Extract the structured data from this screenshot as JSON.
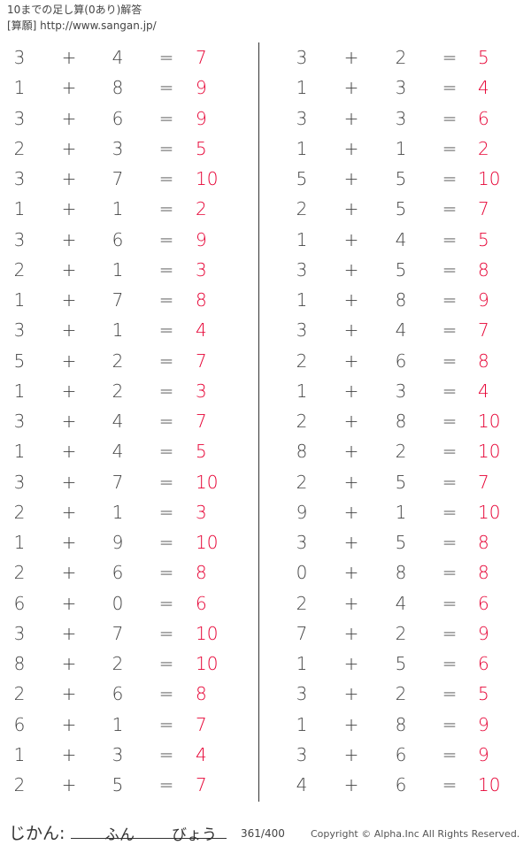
{
  "header": {
    "title": "10までの足し算(0あり)解答",
    "source": "[算願] http://www.sangan.jp/"
  },
  "symbols": {
    "plus": "+",
    "equals": "="
  },
  "left": [
    [
      3,
      4,
      7
    ],
    [
      1,
      8,
      9
    ],
    [
      3,
      6,
      9
    ],
    [
      2,
      3,
      5
    ],
    [
      3,
      7,
      10
    ],
    [
      1,
      1,
      2
    ],
    [
      3,
      6,
      9
    ],
    [
      2,
      1,
      3
    ],
    [
      1,
      7,
      8
    ],
    [
      3,
      1,
      4
    ],
    [
      5,
      2,
      7
    ],
    [
      1,
      2,
      3
    ],
    [
      3,
      4,
      7
    ],
    [
      1,
      4,
      5
    ],
    [
      3,
      7,
      10
    ],
    [
      2,
      1,
      3
    ],
    [
      1,
      9,
      10
    ],
    [
      2,
      6,
      8
    ],
    [
      6,
      0,
      6
    ],
    [
      3,
      7,
      10
    ],
    [
      8,
      2,
      10
    ],
    [
      2,
      6,
      8
    ],
    [
      6,
      1,
      7
    ],
    [
      1,
      3,
      4
    ],
    [
      2,
      5,
      7
    ]
  ],
  "right": [
    [
      3,
      2,
      5
    ],
    [
      1,
      3,
      4
    ],
    [
      3,
      3,
      6
    ],
    [
      1,
      1,
      2
    ],
    [
      5,
      5,
      10
    ],
    [
      2,
      5,
      7
    ],
    [
      1,
      4,
      5
    ],
    [
      3,
      5,
      8
    ],
    [
      1,
      8,
      9
    ],
    [
      3,
      4,
      7
    ],
    [
      2,
      6,
      8
    ],
    [
      1,
      3,
      4
    ],
    [
      2,
      8,
      10
    ],
    [
      8,
      2,
      10
    ],
    [
      2,
      5,
      7
    ],
    [
      9,
      1,
      10
    ],
    [
      3,
      5,
      8
    ],
    [
      0,
      8,
      8
    ],
    [
      2,
      4,
      6
    ],
    [
      7,
      2,
      9
    ],
    [
      1,
      5,
      6
    ],
    [
      3,
      2,
      5
    ],
    [
      1,
      8,
      9
    ],
    [
      3,
      6,
      9
    ],
    [
      4,
      6,
      10
    ]
  ],
  "footer": {
    "time_label": "じかん:",
    "minutes": "ふん",
    "seconds": "びょう",
    "counter": "361/400",
    "copyright": "Copyright ©  Alpha.Inc All Rights Reserved."
  },
  "colors": {
    "answer": "#e60033",
    "text": "#444444"
  }
}
